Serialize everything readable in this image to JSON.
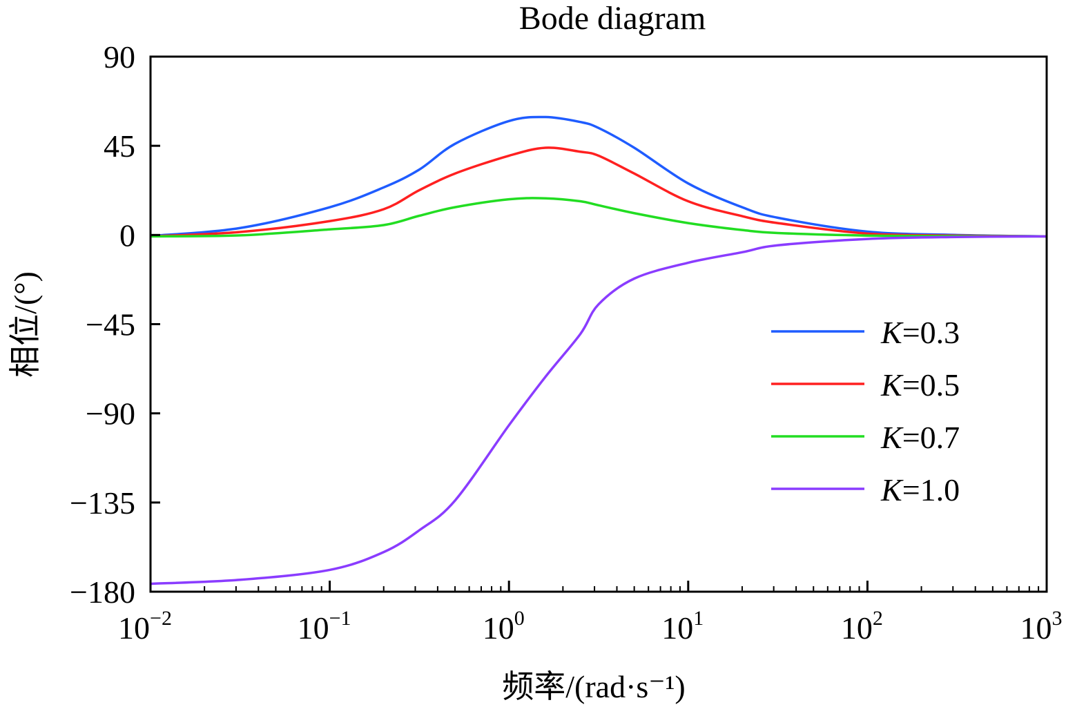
{
  "chart_data": {
    "type": "line",
    "title": "Bode diagram",
    "xlabel": "频率/(rad·s⁻¹)",
    "ylabel": "相位/(°)",
    "xscale": "log",
    "xlim": [
      0.01,
      1000
    ],
    "ylim": [
      -180,
      90
    ],
    "grid": false,
    "legend_position": "right",
    "xticks": [
      {
        "value": 0.01,
        "base": "10",
        "exp": "−2"
      },
      {
        "value": 0.1,
        "base": "10",
        "exp": "−1"
      },
      {
        "value": 1,
        "base": "10",
        "exp": "0"
      },
      {
        "value": 10,
        "base": "10",
        "exp": "1"
      },
      {
        "value": 100,
        "base": "10",
        "exp": "2"
      },
      {
        "value": 1000,
        "base": "10",
        "exp": "3"
      }
    ],
    "yticks": [
      {
        "value": 90,
        "label": "90"
      },
      {
        "value": 45,
        "label": "45"
      },
      {
        "value": 0,
        "label": "0"
      },
      {
        "value": -45,
        "label": "−45"
      },
      {
        "value": -90,
        "label": "−90"
      },
      {
        "value": -135,
        "label": "−135"
      },
      {
        "value": -180,
        "label": "−180"
      }
    ],
    "x": [
      0.01,
      0.0316,
      0.1,
      0.2,
      0.316,
      0.5,
      1.0,
      1.6,
      2.5,
      3.16,
      5,
      10,
      20,
      31.6,
      100,
      316,
      1000
    ],
    "series": [
      {
        "name": "K=0.3",
        "symbol": "K",
        "value_label": "=0.3",
        "color": "#1f5cff",
        "values": [
          -0.5,
          3.5,
          14,
          24,
          33,
          46,
          57.5,
          59.5,
          57,
          54,
          44,
          26,
          14,
          8.7,
          1.7,
          0,
          -0.7
        ]
      },
      {
        "name": "K=0.5",
        "symbol": "K",
        "value_label": "=0.5",
        "color": "#ff2020",
        "values": [
          -0.7,
          1.5,
          7,
          13,
          22.6,
          31,
          40,
          44,
          42,
          40,
          31,
          17,
          9.5,
          6,
          0.7,
          -0.3,
          -0.7
        ]
      },
      {
        "name": "K=0.7",
        "symbol": "K",
        "value_label": "=0.7",
        "color": "#22dd22",
        "values": [
          -0.7,
          -0.2,
          2.8,
          5,
          9.7,
          14,
          18,
          18.5,
          17,
          15,
          11,
          6,
          2.5,
          1,
          -0.3,
          -0.6,
          -0.7
        ]
      },
      {
        "name": "K=1.0",
        "symbol": "K",
        "value_label": "=1.0",
        "color": "#8a3cff",
        "values": [
          -176,
          -174,
          -169,
          -160,
          -149,
          -134,
          -96,
          -71.5,
          -50,
          -35,
          -22,
          -14,
          -8.7,
          -5.2,
          -2,
          -1,
          -0.7
        ]
      }
    ]
  }
}
